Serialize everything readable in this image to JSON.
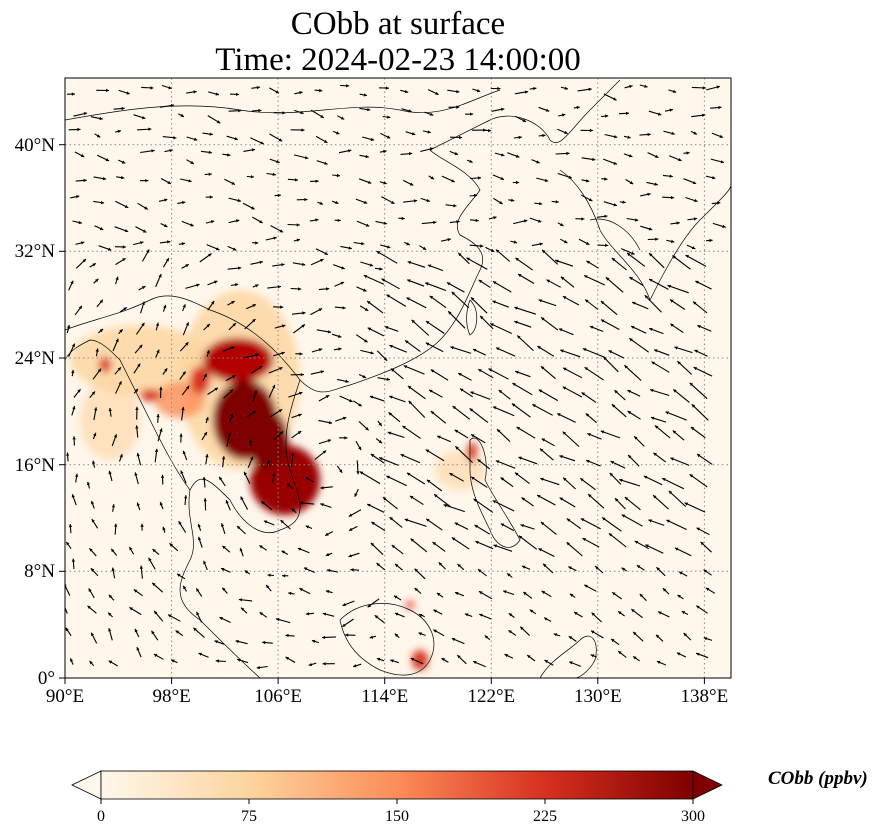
{
  "title": {
    "line1": "CObb at surface",
    "line2": "Time: 2024-02-23 14:00:00"
  },
  "map": {
    "lon_range": [
      90,
      140
    ],
    "lat_range": [
      0,
      45
    ],
    "lon_ticks": [
      "90°E",
      "98°E",
      "106°E",
      "114°E",
      "122°E",
      "130°E",
      "138°E"
    ],
    "lat_ticks": [
      "0°",
      "8°N",
      "16°N",
      "24°N",
      "32°N",
      "40°N"
    ],
    "lon_tick_values": [
      90,
      98,
      106,
      114,
      122,
      130,
      138
    ],
    "lat_tick_values": [
      0,
      8,
      16,
      24,
      32,
      40
    ],
    "gridlines": true,
    "field": "CObb",
    "vectors": "wind arrows"
  },
  "colorbar": {
    "label": "CObb (ppbv)",
    "ticks": [
      "0",
      "75",
      "150",
      "225",
      "300"
    ],
    "tick_values": [
      0,
      75,
      150,
      225,
      300
    ],
    "range": [
      0,
      300
    ],
    "colormap": "OrRd",
    "colors": [
      "#fff7ec",
      "#fdd49e",
      "#fc8d59",
      "#d7301f",
      "#7f0000"
    ],
    "extend": "both"
  }
}
